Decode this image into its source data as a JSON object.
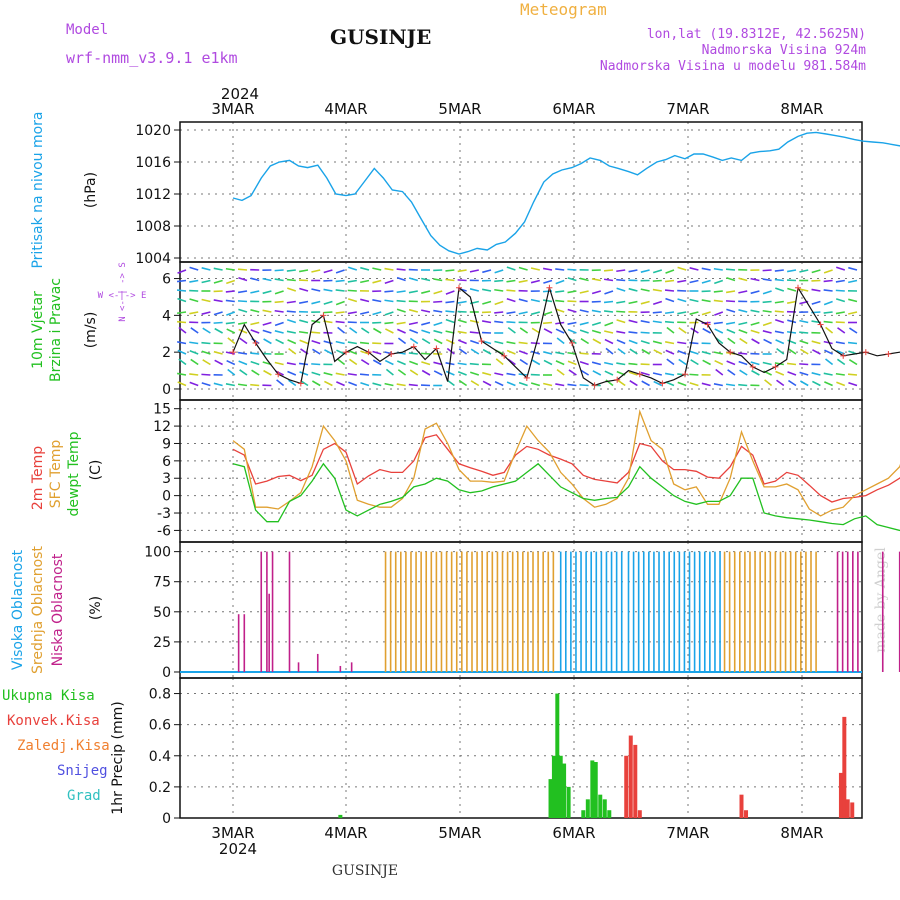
{
  "header": {
    "model_label": "Model",
    "model_name": "wrf-nmm_v3.9.1 e1km",
    "title": "GUSINJE",
    "meteogram": "Meteogram",
    "lonlat": "lon,lat (19.8312E, 42.5625N)",
    "altitude": "Nadmorska Visina 924m",
    "model_altitude": "Nadmorska Visina u modelu 981.584m"
  },
  "footer": {
    "station": "GUSINJE",
    "credit": "made by Angel"
  },
  "colors": {
    "pressure": "#1aa3e8",
    "temp2m": "#e8413c",
    "sfc": "#e0a030",
    "dewpt": "#22c020",
    "high_cloud": "#1aa3e8",
    "mid_cloud": "#e0a030",
    "low_cloud": "#c0208a",
    "header_text": "#b04ae0",
    "meteogram": "#f0b040",
    "precip_total": "#22c020",
    "precip_conv": "#e8413c",
    "precip_snow": "#5050e0",
    "precip_grad": "#30c0c0",
    "precip_zaledj": "#f08030"
  },
  "chart_data": [
    {
      "type": "line",
      "panel": "pressure",
      "ylabel": "Pritisak na nivou mora",
      "unit": "(hPa)",
      "x_day_offsets": [
        0,
        0.08,
        0.16,
        0.25,
        0.33,
        0.41,
        0.5,
        0.58,
        0.66,
        0.75,
        0.83,
        0.91,
        1,
        1.08,
        1.16,
        1.25,
        1.33,
        1.41,
        1.5,
        1.58,
        1.66,
        1.75,
        1.83,
        1.91,
        2,
        2.08,
        2.16,
        2.25,
        2.33,
        2.41,
        2.5,
        2.58,
        2.66,
        2.75,
        2.83,
        2.91,
        3,
        3.08,
        3.16,
        3.25,
        3.33,
        3.41,
        3.5,
        3.58,
        3.66,
        3.75,
        3.83,
        3.91,
        4,
        4.08,
        4.16,
        4.25,
        4.33,
        4.41,
        4.5,
        4.58,
        4.66,
        4.75,
        4.83,
        4.91,
        5,
        5.08,
        5.16,
        5.25,
        5.33,
        5.41,
        5.5,
        5.58,
        5.66,
        5.75,
        5.83,
        5.91,
        6
      ],
      "values": [
        1011.5,
        1011.2,
        1011.8,
        1014,
        1015.5,
        1016,
        1016.2,
        1015.5,
        1015.3,
        1015.6,
        1014,
        1012,
        1011.8,
        1012,
        1013.5,
        1015.2,
        1014,
        1012.5,
        1012.3,
        1011,
        1009,
        1006.8,
        1005.6,
        1004.9,
        1004.5,
        1004.8,
        1005.2,
        1005,
        1005.7,
        1006,
        1007.1,
        1008.5,
        1011,
        1013.5,
        1014.5,
        1015,
        1015.3,
        1015.8,
        1016.5,
        1016.2,
        1015.5,
        1015.2,
        1014.8,
        1014.4,
        1015.2,
        1016,
        1016.3,
        1016.8,
        1016.4,
        1017,
        1017,
        1016.6,
        1016.2,
        1016.5,
        1016.2,
        1017.1,
        1017.3,
        1017.4,
        1017.6,
        1018.5,
        1019.2,
        1019.6,
        1019.7,
        1019.5,
        1019.3,
        1019.1,
        1018.8,
        1018.6,
        1018.5,
        1018.4,
        1018.2,
        1018,
        1017.8,
        1017
      ],
      "ylim": [
        1003.5,
        1021
      ],
      "yticks": [
        "1004",
        "1008",
        "1012",
        "1016",
        "1020"
      ]
    },
    {
      "type": "line",
      "panel": "wind",
      "ylabel": "10m Vjetar Brzina i Pravac",
      "unit": "(m/s)",
      "compass": "W <-|-> E",
      "compass_vertical": "N <- | -> S",
      "speed_x_day_offsets": [
        0,
        0.1,
        0.2,
        0.3,
        0.4,
        0.5,
        0.6,
        0.7,
        0.8,
        0.9,
        1,
        1.1,
        1.2,
        1.3,
        1.4,
        1.5,
        1.6,
        1.7,
        1.8,
        1.9,
        2,
        2.1,
        2.2,
        2.3,
        2.4,
        2.5,
        2.6,
        2.7,
        2.8,
        2.9,
        3,
        3.1,
        3.2,
        3.3,
        3.4,
        3.5,
        3.6,
        3.7,
        3.8,
        3.9,
        4,
        4.1,
        4.2,
        4.3,
        4.4,
        4.5,
        4.6,
        4.7,
        4.8,
        4.9,
        5,
        5.1,
        5.2,
        5.3,
        5.4,
        5.5,
        5.6,
        5.7,
        5.8,
        5.9,
        6
      ],
      "speed": [
        2,
        3.5,
        2.5,
        1.6,
        0.8,
        0.5,
        0.3,
        3.5,
        4,
        1.5,
        2,
        2.3,
        2,
        1.5,
        1.9,
        2,
        2.3,
        1.6,
        2.2,
        0.4,
        5.5,
        5,
        2.6,
        2.2,
        1.8,
        1.2,
        0.6,
        2.8,
        5.5,
        3.5,
        2.5,
        0.6,
        0.2,
        0.4,
        0.5,
        1,
        0.8,
        0.6,
        0.3,
        0.5,
        0.8,
        3.8,
        3.5,
        2.5,
        2,
        1.8,
        1.2,
        0.9,
        1.2,
        1.6,
        5.5,
        4.5,
        3.5,
        2.2,
        1.8,
        1.9,
        2,
        1.8,
        1.9,
        2,
        2
      ],
      "ylim": [
        -0.6,
        6.9
      ],
      "yticks": [
        "0",
        "2",
        "4",
        "6"
      ]
    },
    {
      "type": "line",
      "panel": "temperature",
      "ylabel": [
        "2m Temp",
        "SFC Temp",
        "dewpt Temp"
      ],
      "unit": "(C)",
      "series": [
        {
          "name": "2m Temp",
          "x_day_offsets": [
            0,
            0.1,
            0.2,
            0.3,
            0.4,
            0.5,
            0.6,
            0.7,
            0.8,
            0.9,
            1,
            1.1,
            1.2,
            1.3,
            1.4,
            1.5,
            1.6,
            1.7,
            1.8,
            1.9,
            2,
            2.1,
            2.2,
            2.3,
            2.4,
            2.5,
            2.6,
            2.7,
            2.8,
            2.9,
            3,
            3.1,
            3.2,
            3.3,
            3.4,
            3.5,
            3.6,
            3.7,
            3.8,
            3.9,
            4,
            4.1,
            4.2,
            4.3,
            4.4,
            4.5,
            4.6,
            4.7,
            4.8,
            4.9,
            5,
            5.1,
            5.2,
            5.3,
            5.4,
            5.5,
            5.6,
            5.7,
            5.8,
            5.9,
            6
          ],
          "values": [
            8,
            7,
            2,
            2.5,
            3.3,
            3.5,
            2.6,
            3.5,
            8,
            9,
            7.5,
            2,
            3.4,
            4.5,
            4,
            4,
            6,
            10,
            10.5,
            8,
            5.5,
            4.8,
            4.2,
            3.5,
            4,
            7,
            8.5,
            8,
            7,
            6.3,
            5.5,
            3.5,
            2.8,
            2.5,
            2.2,
            4,
            9,
            8.5,
            6,
            4.5,
            4.5,
            4.2,
            3.2,
            3,
            5,
            8.5,
            7,
            2,
            2.5,
            4,
            3.5,
            1.8,
            0,
            -1.1,
            -0.5,
            -0.3,
            0,
            1,
            1.8,
            3,
            5
          ]
        },
        {
          "name": "SFC Temp",
          "x_day_offsets": [
            0,
            0.1,
            0.2,
            0.3,
            0.4,
            0.5,
            0.6,
            0.7,
            0.8,
            0.9,
            1,
            1.1,
            1.2,
            1.3,
            1.4,
            1.5,
            1.6,
            1.7,
            1.8,
            1.9,
            2,
            2.1,
            2.2,
            2.3,
            2.4,
            2.5,
            2.6,
            2.7,
            2.8,
            2.9,
            3,
            3.1,
            3.2,
            3.3,
            3.4,
            3.5,
            3.6,
            3.7,
            3.8,
            3.9,
            4,
            4.1,
            4.2,
            4.3,
            4.4,
            4.5,
            4.6,
            4.7,
            4.8,
            4.9,
            5,
            5.1,
            5.2,
            5.3,
            5.4,
            5.5,
            5.6,
            5.7,
            5.8,
            5.9,
            6
          ],
          "values": [
            9.5,
            8,
            -2,
            -2,
            -2.3,
            -1,
            0.5,
            5,
            12,
            9.5,
            6,
            -0.8,
            -1.5,
            -2,
            -2,
            -0.5,
            3,
            11.5,
            12.5,
            9,
            4.5,
            2.5,
            2.5,
            2.3,
            2.5,
            7.5,
            12,
            9.5,
            7.5,
            4,
            2,
            -0.5,
            -2,
            -1.5,
            -0.5,
            3,
            14.5,
            9.5,
            8,
            2,
            1,
            1.5,
            -1.5,
            -1.5,
            3,
            11,
            6,
            1.5,
            1.5,
            2,
            1,
            -2.3,
            -3.5,
            -2.5,
            -2,
            0,
            1,
            2,
            3,
            5,
            10.5
          ]
        },
        {
          "name": "dewpt Temp",
          "x_day_offsets": [
            0,
            0.1,
            0.2,
            0.3,
            0.4,
            0.5,
            0.6,
            0.7,
            0.8,
            0.9,
            1,
            1.1,
            1.2,
            1.3,
            1.4,
            1.5,
            1.6,
            1.7,
            1.8,
            1.9,
            2,
            2.1,
            2.2,
            2.3,
            2.4,
            2.5,
            2.6,
            2.7,
            2.8,
            2.9,
            3,
            3.1,
            3.2,
            3.3,
            3.4,
            3.5,
            3.6,
            3.7,
            3.8,
            3.9,
            4,
            4.1,
            4.2,
            4.3,
            4.4,
            4.5,
            4.6,
            4.7,
            4.8,
            4.9,
            5,
            5.1,
            5.2,
            5.3,
            5.4,
            5.5,
            5.6,
            5.7,
            5.8,
            5.9,
            6
          ],
          "values": [
            5.5,
            5,
            -2.5,
            -4.5,
            -4.5,
            -1,
            0,
            2.5,
            5.5,
            3,
            -2.5,
            -3.5,
            -2.5,
            -1.5,
            -1,
            -0.3,
            1.5,
            2,
            3,
            2.5,
            1,
            0.5,
            0.8,
            1.5,
            2,
            2.5,
            4,
            5.5,
            3.5,
            1.5,
            0.5,
            -0.5,
            -0.8,
            -0.5,
            -0.3,
            1.5,
            5,
            3,
            1.5,
            0,
            -1,
            -1.5,
            -1,
            -1,
            0,
            3,
            3,
            -3,
            -3.5,
            -3.8,
            -4,
            -4.2,
            -4.5,
            -4.8,
            -5,
            -4,
            -3.5,
            -5,
            -5.5,
            -6,
            -5.5
          ]
        }
      ],
      "ylim": [
        -8,
        16.5
      ],
      "yticks": [
        "-6",
        "-3",
        "0",
        "3",
        "6",
        "9",
        "12",
        "15"
      ]
    },
    {
      "type": "bar",
      "panel": "cloud",
      "ylabel": [
        "Visoka Oblacnost",
        "Srednja Oblacnost",
        "Niska Oblacnost"
      ],
      "unit": "(%)",
      "ylim": [
        -5,
        108
      ],
      "yticks": [
        "0",
        "25",
        "50",
        "75",
        "100"
      ]
    },
    {
      "type": "bar",
      "panel": "precip",
      "ylabel": "1hr Precip",
      "unit": "(mm)",
      "legend": [
        "Ukupna Kisa",
        "Konvek.Kisa",
        "Zaledj.Kisa",
        "Snijeg",
        "Grad"
      ],
      "bars": [
        {
          "x": 0.95,
          "v": 0.02
        },
        {
          "x": 2.81,
          "v": 0.25
        },
        {
          "x": 2.84,
          "v": 0.4
        },
        {
          "x": 2.87,
          "v": 0.8
        },
        {
          "x": 2.9,
          "v": 0.4
        },
        {
          "x": 2.93,
          "v": 0.35
        },
        {
          "x": 2.97,
          "v": 0.2
        },
        {
          "x": 3.1,
          "v": 0.05
        },
        {
          "x": 3.14,
          "v": 0.12
        },
        {
          "x": 3.18,
          "v": 0.37
        },
        {
          "x": 3.21,
          "v": 0.36
        },
        {
          "x": 3.25,
          "v": 0.15
        },
        {
          "x": 3.29,
          "v": 0.12
        },
        {
          "x": 3.33,
          "v": 0.05
        },
        {
          "x": 3.48,
          "v": 0.4
        },
        {
          "x": 3.52,
          "v": 0.53
        },
        {
          "x": 3.56,
          "v": 0.47
        },
        {
          "x": 3.6,
          "v": 0.05
        },
        {
          "x": 4.5,
          "v": 0.15
        },
        {
          "x": 4.54,
          "v": 0.05
        },
        {
          "x": 5.38,
          "v": 0.29
        },
        {
          "x": 5.41,
          "v": 0.65
        },
        {
          "x": 5.44,
          "v": 0.12
        },
        {
          "x": 5.48,
          "v": 0.1
        }
      ],
      "ylim": [
        0,
        0.9
      ],
      "yticks": [
        "0",
        "0.2",
        "0.4",
        "0.6",
        "0.8"
      ]
    }
  ],
  "axis": {
    "year": "2024",
    "top_days": [
      "3MAR",
      "4MAR",
      "5MAR",
      "6MAR",
      "7MAR",
      "8MAR"
    ],
    "bottom_days": [
      "3MAR",
      "4MAR",
      "5MAR",
      "6MAR",
      "7MAR",
      "8MAR"
    ]
  }
}
